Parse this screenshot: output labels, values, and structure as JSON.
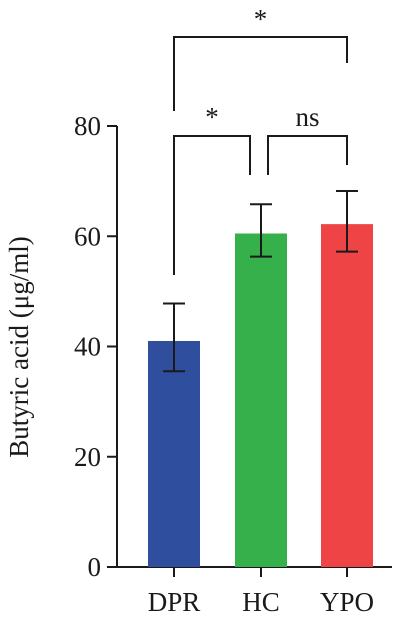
{
  "chart_data": {
    "type": "bar",
    "categories": [
      "DPR",
      "HC",
      "YPO"
    ],
    "values": [
      41,
      60.5,
      62.2
    ],
    "errors": [
      [
        35.5,
        47.8
      ],
      [
        56.3,
        65.8
      ],
      [
        57.2,
        68.2
      ]
    ],
    "colors": [
      "#2f4f9e",
      "#35b04a",
      "#ee4446"
    ],
    "title": "",
    "xlabel": "",
    "ylabel": "Butyric acid (μg/ml)",
    "ylim": [
      0,
      80
    ],
    "yticks": [
      0,
      20,
      40,
      60,
      80
    ],
    "grid": false,
    "legend": "none",
    "significance": [
      {
        "from": "DPR",
        "to": "HC",
        "label": "*"
      },
      {
        "from": "HC",
        "to": "YPO",
        "label": "ns"
      },
      {
        "from": "DPR",
        "to": "YPO",
        "label": "*"
      }
    ]
  }
}
